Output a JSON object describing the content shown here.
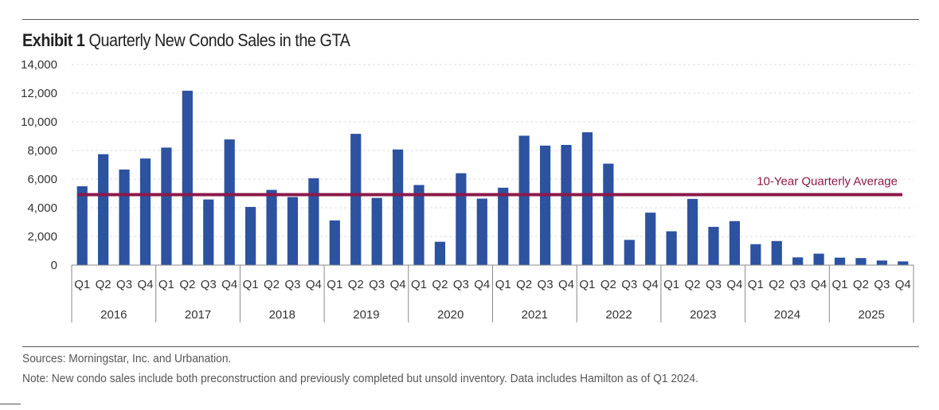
{
  "header": {
    "exhibit": "Exhibit 1",
    "title": "Quarterly New Condo Sales in the GTA"
  },
  "footer": {
    "sources": "Sources: Morningstar, Inc. and Urbanation.",
    "note": "Note: New condo sales include both preconstruction and previously completed but unsold inventory. Data includes Hamilton as of Q1 2024."
  },
  "chart_data": {
    "type": "bar",
    "title": "Quarterly New Condo Sales in the GTA",
    "years": [
      "2016",
      "2017",
      "2018",
      "2019",
      "2020",
      "2021",
      "2022",
      "2023",
      "2024",
      "2025"
    ],
    "quarters": [
      "Q1",
      "Q2",
      "Q3",
      "Q4"
    ],
    "series": [
      {
        "values": [
          5500,
          7740,
          6670,
          7440,
          8200,
          12170,
          4580,
          8770,
          4060,
          5250,
          4750,
          6060,
          3120,
          9160,
          4690,
          8070,
          5590,
          1630,
          6410,
          4640,
          5400,
          9030,
          8340,
          8390,
          9270,
          7080,
          1760,
          3660,
          2360,
          4620,
          2670,
          3070,
          1460,
          1680,
          540,
          800,
          520,
          490,
          320,
          260
        ],
        "color": "#2c52a0"
      }
    ],
    "reference_line": {
      "label": "10-Year Quarterly Average",
      "value": 4920,
      "color": "#8b1a4a"
    },
    "yticks": [
      "0",
      "2,000",
      "4,000",
      "6,000",
      "8,000",
      "10,000",
      "12,000",
      "14,000"
    ],
    "ylim": [
      0,
      14000
    ],
    "grid": true
  }
}
